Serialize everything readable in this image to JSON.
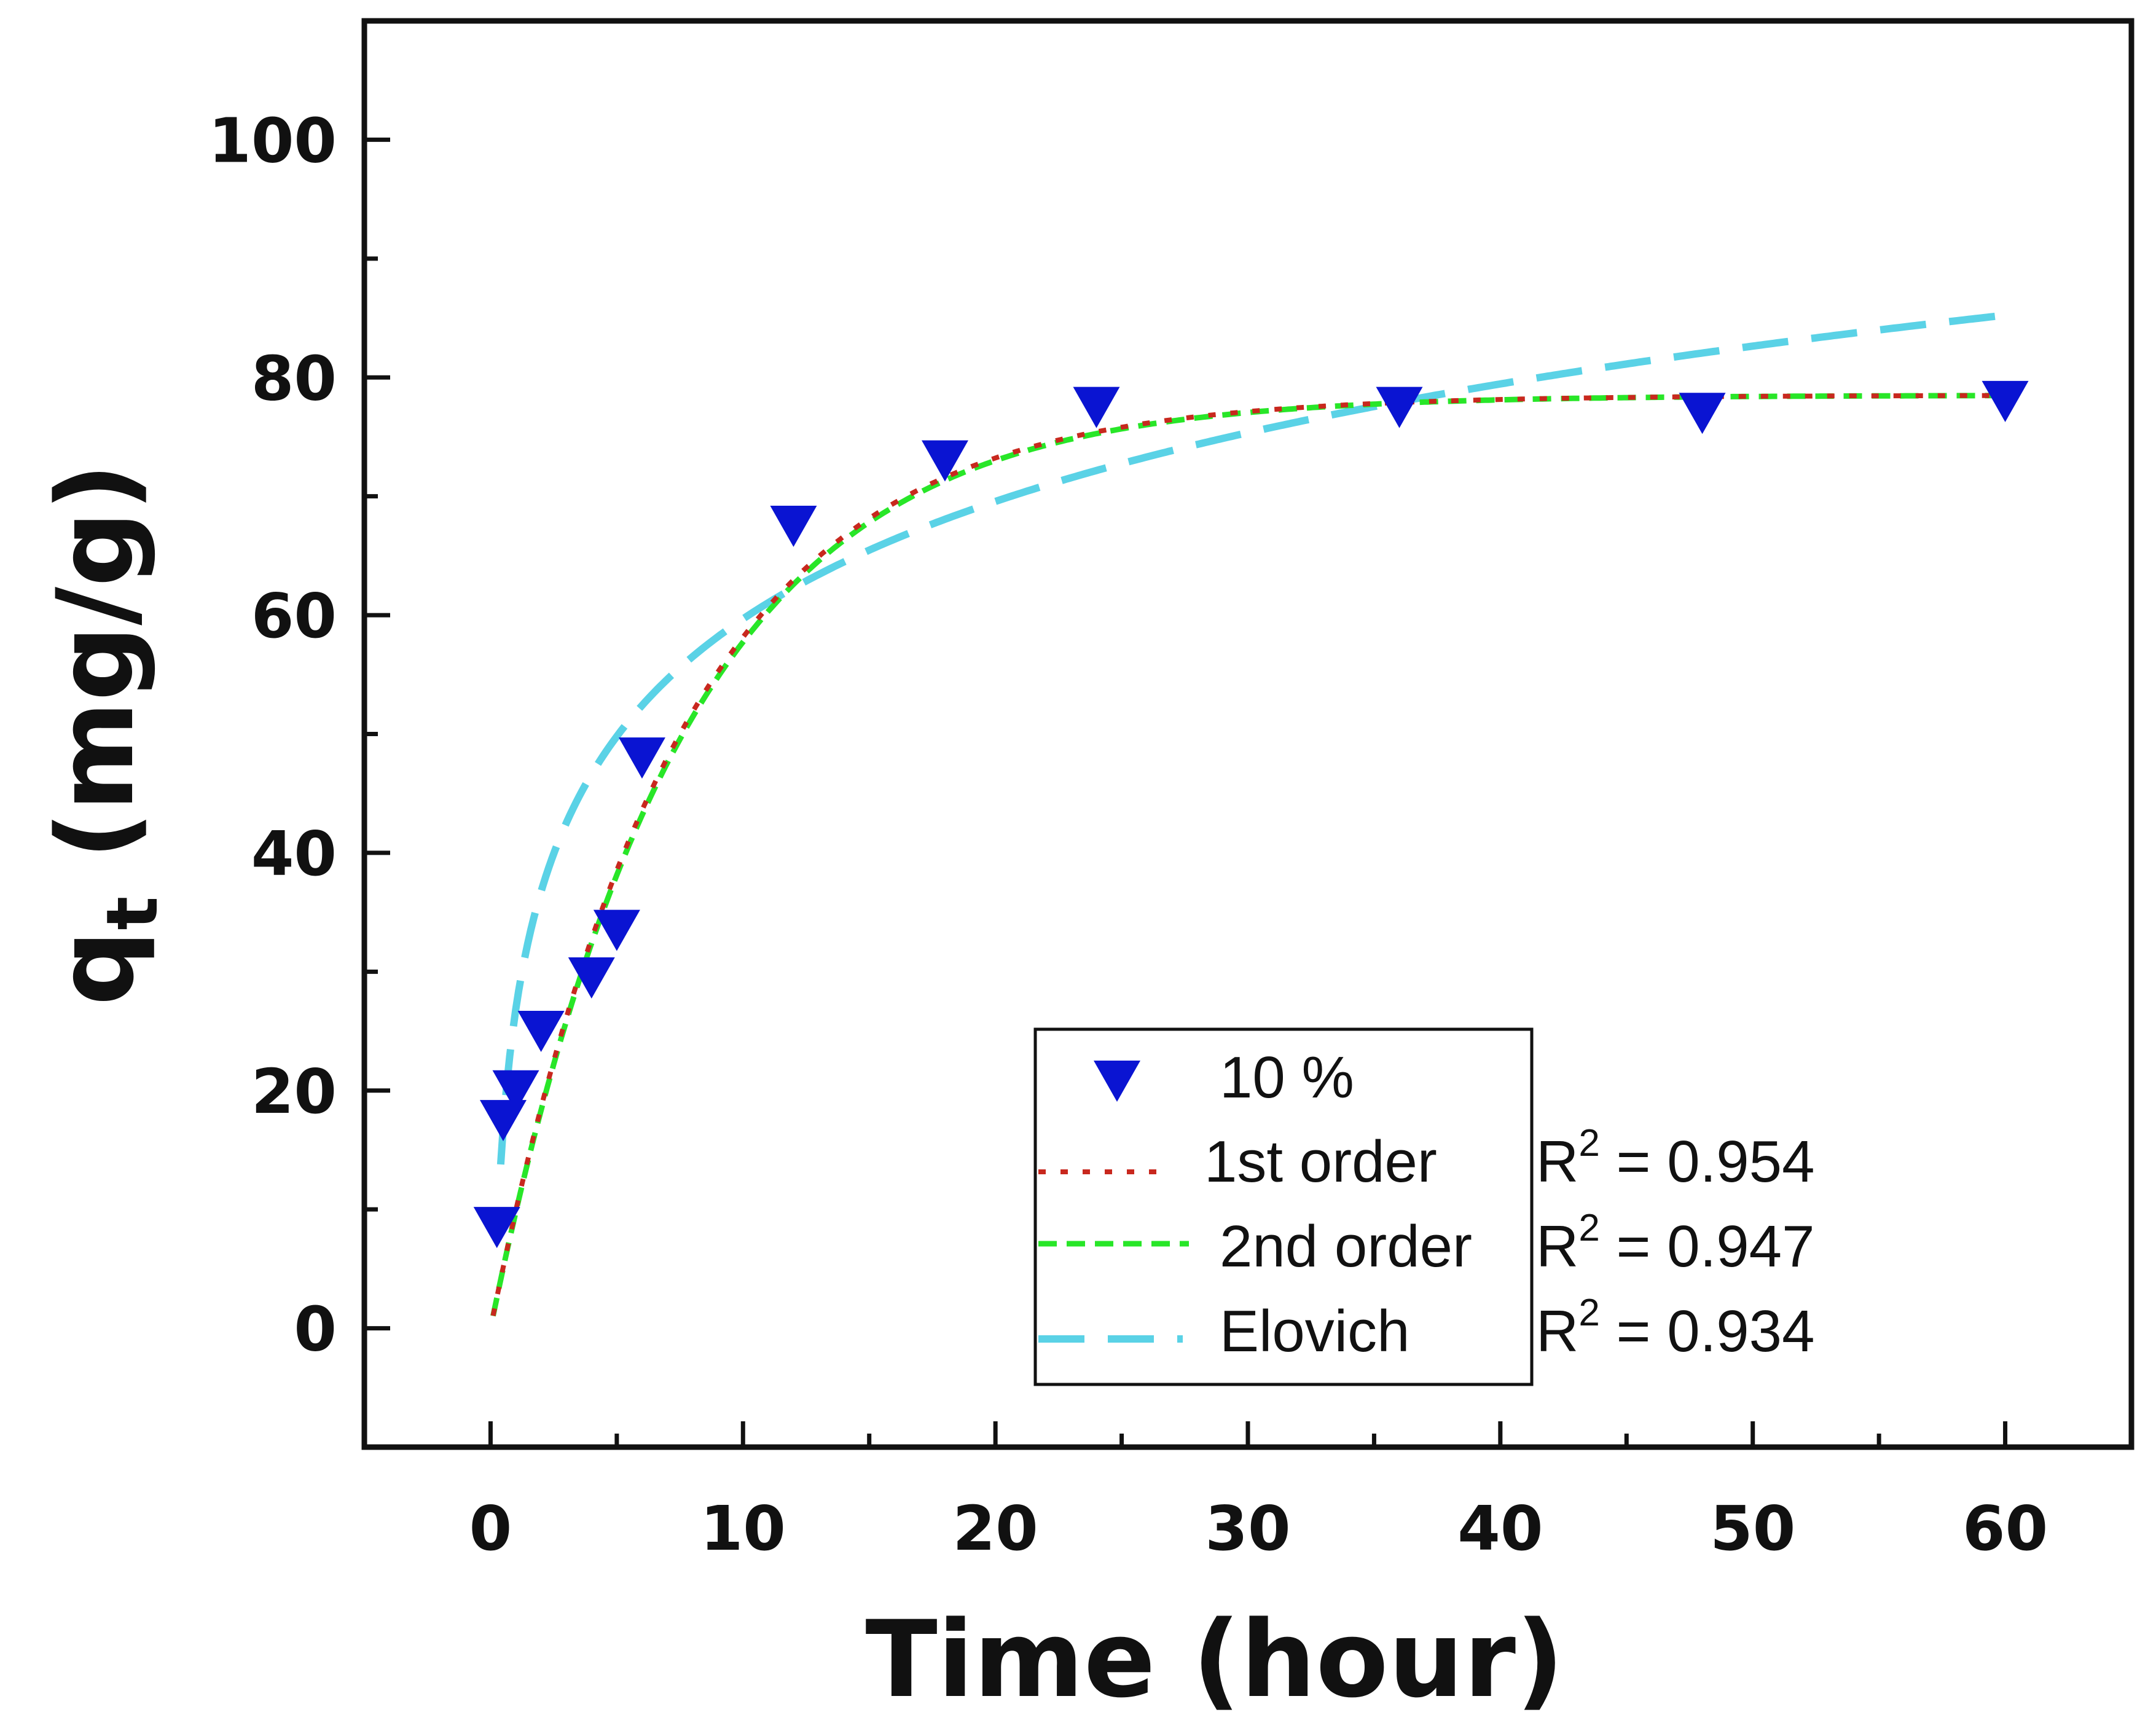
{
  "chart_data": {
    "type": "scatter",
    "title": "",
    "xlabel": "Time (hour)",
    "ylabel_main": "q",
    "ylabel_sub": "t",
    "ylabel_unit": " (mg/g)",
    "xlim": [
      -5,
      65
    ],
    "ylim": [
      -10,
      110
    ],
    "xticks": [
      0,
      10,
      20,
      30,
      40,
      50,
      60
    ],
    "yticks": [
      0,
      20,
      40,
      60,
      80,
      100
    ],
    "grid": false,
    "legend_position": "bottom-right",
    "series": [
      {
        "name": "10 %",
        "kind": "points",
        "color": "#0a14d2",
        "x": [
          0.25,
          0.5,
          1,
          2,
          4,
          5,
          6,
          12,
          18,
          24,
          36,
          48,
          60
        ],
        "y": [
          8.5,
          17.5,
          20,
          25,
          29.5,
          33.5,
          48,
          67.5,
          73,
          77.5,
          77.5,
          77,
          78
        ]
      },
      {
        "name": "1st order",
        "kind": "curve",
        "model": "first_order",
        "qe": 78.5,
        "k": 0.135,
        "color": "#c8281e",
        "r2": "0.954"
      },
      {
        "name": "2nd order",
        "kind": "curve",
        "model": "first_order",
        "qe": 78.5,
        "k": 0.133,
        "color": "#28e628",
        "r2": "0.947"
      },
      {
        "name": "Elovich",
        "kind": "curve",
        "model": "elovich",
        "a": 26.85,
        "b": 14.26,
        "color": "#5ad2e6",
        "r2": "0.934"
      }
    ]
  },
  "legend": {
    "r_label": "R",
    "r_sup": "2",
    "eq": " = "
  }
}
